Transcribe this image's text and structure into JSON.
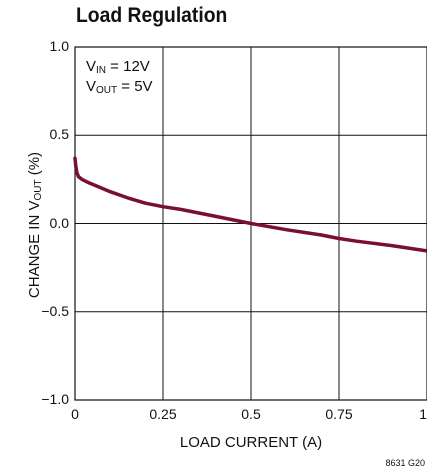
{
  "chart_data": {
    "type": "line",
    "title": "Load Regulation",
    "xlabel": "LOAD CURRENT (A)",
    "ylabel_main": "CHANGE IN V",
    "ylabel_sub": "OUT",
    "ylabel_tail": " (%)",
    "xlim": [
      0,
      1
    ],
    "ylim": [
      -1.0,
      1.0
    ],
    "x_ticks": [
      "0",
      "0.25",
      "0.5",
      "0.75",
      "1"
    ],
    "y_ticks": [
      "1.0",
      "0.5",
      "0.0",
      "−0.5",
      "−1.0"
    ],
    "grid": true,
    "annotations": {
      "vin_main": "V",
      "vin_sub": "IN",
      "vin_tail": " = 12V",
      "vout_main": "V",
      "vout_sub": "OUT",
      "vout_tail": " = 5V"
    },
    "figure_code": "8631 G20",
    "line_color": "#7a1030",
    "series": [
      {
        "x": [
          0,
          0.002,
          0.005,
          0.01,
          0.02,
          0.04,
          0.07,
          0.1,
          0.15,
          0.2,
          0.25,
          0.3,
          0.4,
          0.5,
          0.6,
          0.7,
          0.75,
          0.8,
          0.9,
          1.0
        ],
        "y": [
          0.37,
          0.33,
          0.29,
          0.265,
          0.25,
          0.23,
          0.205,
          0.18,
          0.145,
          0.115,
          0.095,
          0.08,
          0.04,
          0.0,
          -0.035,
          -0.065,
          -0.085,
          -0.1,
          -0.125,
          -0.155
        ]
      }
    ]
  }
}
